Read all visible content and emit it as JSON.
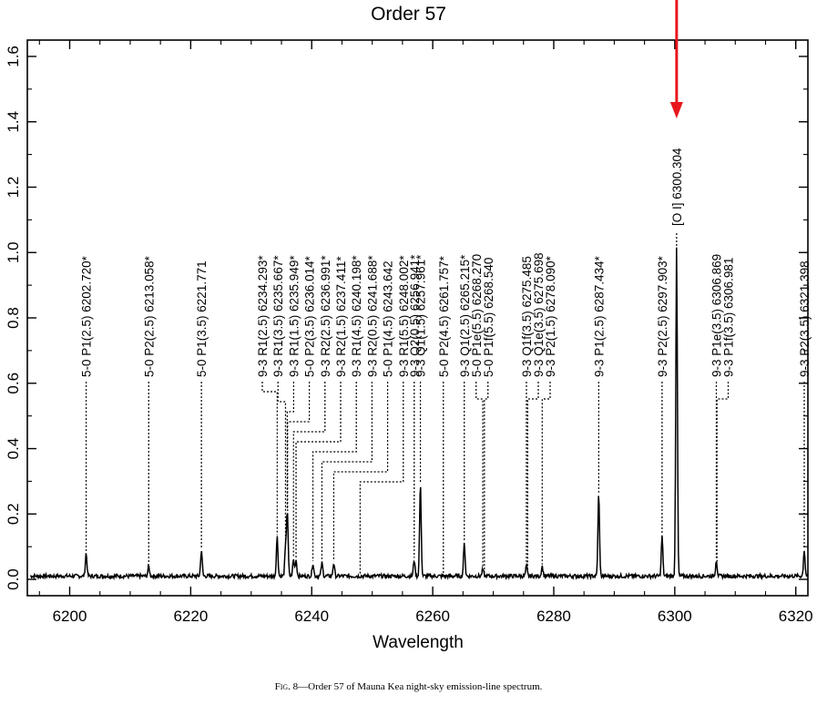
{
  "chart_data": {
    "type": "line",
    "title": "Order 57",
    "xlabel": "Wavelength",
    "ylabel": "",
    "xlim": [
      6193,
      6322
    ],
    "ylim": [
      -0.05,
      1.65
    ],
    "xticks": [
      6200,
      6220,
      6240,
      6260,
      6280,
      6300,
      6320
    ],
    "yticks": [
      0.0,
      0.2,
      0.4,
      0.6,
      0.8,
      1.0,
      1.2,
      1.4,
      1.6
    ],
    "ytick_labels": [
      "0.0",
      "0.2",
      "0.4",
      "0.6",
      "0.8",
      "1.0",
      "1.2",
      "1.4",
      "1.6"
    ],
    "grid": false,
    "baseline": 0.01,
    "peaks": [
      {
        "x": 6202.72,
        "y": 0.07
      },
      {
        "x": 6213.06,
        "y": 0.03
      },
      {
        "x": 6221.77,
        "y": 0.08
      },
      {
        "x": 6234.29,
        "y": 0.12
      },
      {
        "x": 6235.67,
        "y": 0.08
      },
      {
        "x": 6235.95,
        "y": 0.14
      },
      {
        "x": 6236.01,
        "y": 0.06
      },
      {
        "x": 6236.99,
        "y": 0.05
      },
      {
        "x": 6237.41,
        "y": 0.05
      },
      {
        "x": 6240.2,
        "y": 0.04
      },
      {
        "x": 6241.69,
        "y": 0.04
      },
      {
        "x": 6243.64,
        "y": 0.04
      },
      {
        "x": 6256.94,
        "y": 0.05
      },
      {
        "x": 6257.96,
        "y": 0.28
      },
      {
        "x": 6265.22,
        "y": 0.1
      },
      {
        "x": 6268.27,
        "y": 0.02
      },
      {
        "x": 6275.49,
        "y": 0.03
      },
      {
        "x": 6278.09,
        "y": 0.03
      },
      {
        "x": 6287.43,
        "y": 0.25
      },
      {
        "x": 6297.9,
        "y": 0.12
      },
      {
        "x": 6300.3,
        "y": 1.0
      },
      {
        "x": 6306.87,
        "y": 0.05
      },
      {
        "x": 6321.4,
        "y": 0.08
      }
    ],
    "annotations": [
      {
        "labels": [
          "5-0 P1(2.5) 6202.720*"
        ],
        "waves": [
          6202.72
        ]
      },
      {
        "labels": [
          "5-0 P2(2.5) 6213.058*"
        ],
        "waves": [
          6213.058
        ]
      },
      {
        "labels": [
          "5-0 P1(3.5) 6221.771"
        ],
        "waves": [
          6221.771
        ]
      },
      {
        "labels": [
          "9-3 R1(2.5) 6234.293*"
        ],
        "waves": [
          6234.293
        ]
      },
      {
        "labels": [
          "9-3 R1(3.5) 6235.667*"
        ],
        "waves": [
          6235.667
        ]
      },
      {
        "labels": [
          "9-3 R1(1.5) 6235.949*"
        ],
        "waves": [
          6235.949
        ]
      },
      {
        "labels": [
          "5-0 P2(3.5) 6236.014*"
        ],
        "waves": [
          6236.014
        ]
      },
      {
        "labels": [
          "9-3 R2(2.5) 6236.991*"
        ],
        "waves": [
          6236.991
        ]
      },
      {
        "labels": [
          "9-3 R2(1.5) 6237.411*"
        ],
        "waves": [
          6237.411
        ]
      },
      {
        "labels": [
          "9-3 R1(4.5) 6240.198*"
        ],
        "waves": [
          6240.198
        ]
      },
      {
        "labels": [
          "9-3 R2(0.5) 6241.688*"
        ],
        "waves": [
          6241.688
        ]
      },
      {
        "labels": [
          "5-0 P1(4.5) 6243.642"
        ],
        "waves": [
          6243.642
        ]
      },
      {
        "labels": [
          "9-3 R1(5.5) 6248.002*"
        ],
        "waves": [
          6248.002
        ]
      },
      {
        "labels": [
          "9-3 Q2(0.5) 6256.941*"
        ],
        "waves": [
          6256.941
        ]
      },
      {
        "labels": [
          "9-3 Q1(1.5) 6257.961*"
        ],
        "waves": [
          6257.961
        ]
      },
      {
        "labels": [
          "5-0 P2(4.5) 6261.757*"
        ],
        "waves": [
          6261.757
        ]
      },
      {
        "labels": [
          "9-3 Q1(2.5) 6265.215*",
          "5-0 P1e(5.5) 6268.270",
          "5-0 P1f(5.5) 6268.540"
        ],
        "waves": [
          6265.215,
          6268.27,
          6268.54
        ]
      },
      {
        "labels": [
          "9-3 Q1f(3.5) 6275.485",
          "9-3 Q1e(3.5) 6275.698",
          "9-3 P2(1.5) 6278.090*"
        ],
        "waves": [
          6275.485,
          6275.698,
          6278.09
        ]
      },
      {
        "labels": [
          "9-3 P1(2.5) 6287.434*"
        ],
        "waves": [
          6287.434
        ]
      },
      {
        "labels": [
          "9-3 P2(2.5) 6297.903*"
        ],
        "waves": [
          6297.903
        ]
      },
      {
        "labels": [
          "[O I] 6300.304"
        ],
        "waves": [
          6300.304
        ]
      },
      {
        "labels": [
          "9-3 P1e(3.5) 6306.869",
          "9-3 P1f(3.5) 6306.981"
        ],
        "waves": [
          6306.869,
          6306.981
        ]
      },
      {
        "labels": [
          "9-3 P2(3.5) 6321.398"
        ],
        "waves": [
          6321.398
        ]
      }
    ],
    "highlight": {
      "x": 6300.304,
      "color": "#e8161b"
    }
  },
  "caption": {
    "fig": "Fig. 8",
    "text": "—Order 57 of Mauna Kea night-sky emission-line spectrum."
  },
  "colors": {
    "line": "#000000",
    "arrow": "#e8161b"
  }
}
